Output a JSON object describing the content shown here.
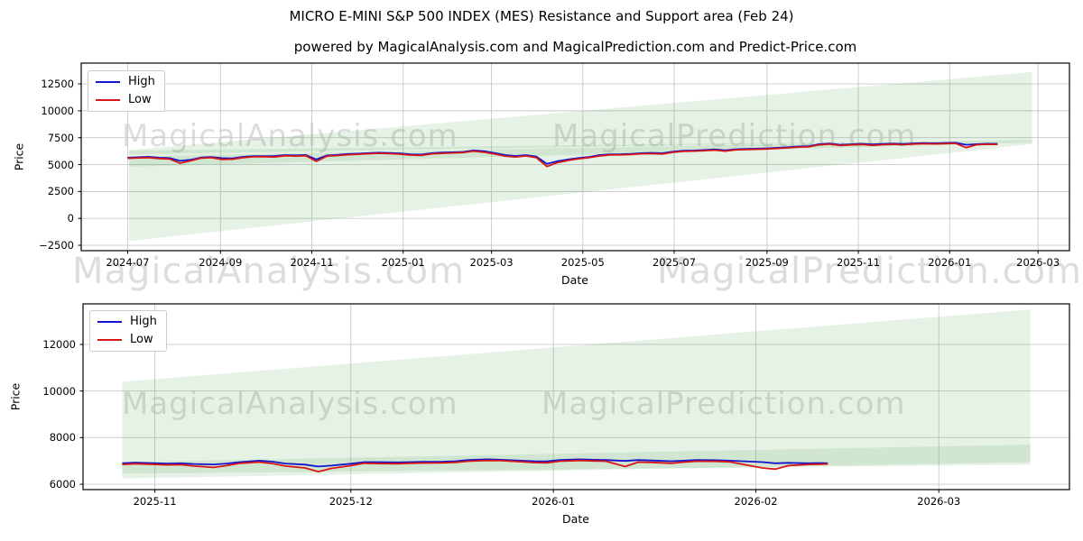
{
  "figure": {
    "title": "MICRO E-MINI S&P 500 INDEX (MES) Resistance and Support area (Feb 24)",
    "subtitle": "powered by MagicalAnalysis.com and MagicalPrediction.com and Predict-Price.com"
  },
  "watermarks": {
    "left": "MagicalAnalysis.com",
    "right": "MagicalPrediction.com"
  },
  "colors": {
    "high": "#1414cc",
    "low": "#d81616",
    "band_fill": "#3f9e3f",
    "band_opacity": 0.13,
    "grid": "#c9c9c9",
    "axis": "#000000",
    "watermark_gray": "#bfbfbf",
    "background": "#ffffff"
  },
  "chart_data": [
    {
      "type": "line",
      "title": "",
      "xlabel": "Date",
      "ylabel": "Price",
      "grid": true,
      "legend_position": "upper left",
      "x_domain": [
        "2024-05-31",
        "2026-03-22"
      ],
      "y_domain": [
        -3000,
        14430
      ],
      "y_ticks": [
        {
          "v": -2500,
          "label": "−2500"
        },
        {
          "v": 0,
          "label": "0"
        },
        {
          "v": 2500,
          "label": "2500"
        },
        {
          "v": 5000,
          "label": "5000"
        },
        {
          "v": 7500,
          "label": "7500"
        },
        {
          "v": 10000,
          "label": "10000"
        },
        {
          "v": 12500,
          "label": "12500"
        }
      ],
      "x_ticks": [
        {
          "date": "2024-07-01",
          "label": "2024-07"
        },
        {
          "date": "2024-09-01",
          "label": "2024-09"
        },
        {
          "date": "2024-11-01",
          "label": "2024-11"
        },
        {
          "date": "2025-01-01",
          "label": "2025-01"
        },
        {
          "date": "2025-03-01",
          "label": "2025-03"
        },
        {
          "date": "2025-05-01",
          "label": "2025-05"
        },
        {
          "date": "2025-07-01",
          "label": "2025-07"
        },
        {
          "date": "2025-09-01",
          "label": "2025-09"
        },
        {
          "date": "2025-11-01",
          "label": "2025-11"
        },
        {
          "date": "2026-01-01",
          "label": "2026-01"
        },
        {
          "date": "2026-03-01",
          "label": "2026-03"
        }
      ],
      "bands": [
        {
          "name": "resistance-wedge",
          "start": "2024-07-02",
          "end": "2026-02-25",
          "top": [
            6350,
            13600
          ],
          "bottom": [
            5950,
            7350
          ]
        },
        {
          "name": "support-wedge",
          "start": "2024-07-02",
          "end": "2026-02-25",
          "top": [
            6300,
            7300
          ],
          "bottom": [
            -2100,
            6900
          ]
        },
        {
          "name": "mid-band",
          "start": "2024-07-02",
          "end": "2026-02-25",
          "top": [
            5750,
            7350
          ],
          "bottom": [
            4800,
            7050
          ]
        }
      ],
      "dates": [
        "2024-07-01",
        "2024-07-08",
        "2024-07-15",
        "2024-07-22",
        "2024-07-29",
        "2024-08-05",
        "2024-08-12",
        "2024-08-19",
        "2024-08-26",
        "2024-09-02",
        "2024-09-09",
        "2024-09-16",
        "2024-09-23",
        "2024-09-30",
        "2024-10-07",
        "2024-10-14",
        "2024-10-21",
        "2024-10-28",
        "2024-11-04",
        "2024-11-11",
        "2024-11-18",
        "2024-11-25",
        "2024-12-02",
        "2024-12-09",
        "2024-12-16",
        "2024-12-23",
        "2024-12-30",
        "2025-01-06",
        "2025-01-13",
        "2025-01-20",
        "2025-01-27",
        "2025-02-03",
        "2025-02-10",
        "2025-02-17",
        "2025-02-24",
        "2025-03-03",
        "2025-03-10",
        "2025-03-17",
        "2025-03-24",
        "2025-03-31",
        "2025-04-07",
        "2025-04-14",
        "2025-04-21",
        "2025-04-28",
        "2025-05-05",
        "2025-05-12",
        "2025-05-19",
        "2025-05-26",
        "2025-06-02",
        "2025-06-09",
        "2025-06-16",
        "2025-06-23",
        "2025-06-30",
        "2025-07-07",
        "2025-07-14",
        "2025-07-21",
        "2025-07-28",
        "2025-08-04",
        "2025-08-11",
        "2025-08-18",
        "2025-08-25",
        "2025-09-01",
        "2025-09-08",
        "2025-09-15",
        "2025-09-22",
        "2025-09-29",
        "2025-10-06",
        "2025-10-13",
        "2025-10-20",
        "2025-10-27",
        "2025-11-03",
        "2025-11-10",
        "2025-11-17",
        "2025-11-24",
        "2025-12-01",
        "2025-12-08",
        "2025-12-15",
        "2025-12-22",
        "2025-12-29",
        "2026-01-05",
        "2026-01-12",
        "2026-01-19",
        "2026-01-26",
        "2026-02-02"
      ],
      "series": [
        {
          "name": "High",
          "color": "#1414cc",
          "values": [
            5640,
            5680,
            5720,
            5640,
            5610,
            5350,
            5450,
            5660,
            5700,
            5600,
            5570,
            5720,
            5780,
            5790,
            5800,
            5880,
            5860,
            5890,
            5480,
            5850,
            5900,
            5980,
            6020,
            6070,
            6110,
            6080,
            6040,
            5960,
            5930,
            6060,
            6120,
            6140,
            6180,
            6320,
            6240,
            6080,
            5890,
            5800,
            5880,
            5740,
            5060,
            5310,
            5470,
            5610,
            5710,
            5880,
            5960,
            5970,
            6000,
            6060,
            6090,
            6060,
            6190,
            6290,
            6310,
            6350,
            6410,
            6320,
            6430,
            6450,
            6480,
            6510,
            6560,
            6610,
            6690,
            6710,
            6900,
            6960,
            6840,
            6890,
            6940,
            6870,
            6910,
            6950,
            6920,
            6970,
            7000,
            6980,
            7010,
            7030,
            6840,
            6900,
            6940,
            6930
          ]
        },
        {
          "name": "Low",
          "color": "#d81616",
          "values": [
            5580,
            5620,
            5650,
            5560,
            5520,
            5130,
            5350,
            5600,
            5640,
            5480,
            5500,
            5650,
            5720,
            5730,
            5710,
            5820,
            5790,
            5820,
            5300,
            5780,
            5840,
            5920,
            5960,
            6010,
            6050,
            6020,
            5970,
            5880,
            5860,
            6000,
            6040,
            6080,
            6120,
            6250,
            6150,
            5980,
            5790,
            5710,
            5810,
            5640,
            4820,
            5180,
            5380,
            5540,
            5640,
            5800,
            5900,
            5910,
            5940,
            6000,
            6020,
            5980,
            6130,
            6230,
            6250,
            6290,
            6340,
            6250,
            6370,
            6390,
            6420,
            6450,
            6500,
            6550,
            6630,
            6650,
            6840,
            6900,
            6770,
            6830,
            6880,
            6790,
            6850,
            6890,
            6850,
            6910,
            6940,
            6920,
            6950,
            6970,
            6580,
            6850,
            6890,
            6880
          ]
        }
      ]
    },
    {
      "type": "line",
      "title": "",
      "xlabel": "Date",
      "ylabel": "Price",
      "grid": true,
      "legend_position": "upper left",
      "x_domain": [
        "2025-10-21",
        "2026-03-21"
      ],
      "y_domain": [
        5770,
        13740
      ],
      "y_ticks": [
        {
          "v": 6000,
          "label": "6000"
        },
        {
          "v": 8000,
          "label": "8000"
        },
        {
          "v": 10000,
          "label": "10000"
        },
        {
          "v": 12000,
          "label": "12000"
        }
      ],
      "x_ticks": [
        {
          "date": "2025-11-01",
          "label": "2025-11"
        },
        {
          "date": "2025-12-01",
          "label": "2025-12"
        },
        {
          "date": "2026-01-01",
          "label": "2026-01"
        },
        {
          "date": "2026-02-01",
          "label": "2026-02"
        },
        {
          "date": "2026-03-01",
          "label": "2026-03"
        }
      ],
      "bands": [
        {
          "name": "resistance-wedge",
          "start": "2025-10-27",
          "end": "2026-03-15",
          "top": [
            10400,
            13500
          ],
          "bottom": [
            6250,
            6950
          ]
        },
        {
          "name": "support-band",
          "start": "2025-10-27",
          "end": "2026-03-15",
          "top": [
            6950,
            7700
          ],
          "bottom": [
            6450,
            6840
          ]
        }
      ],
      "dates": [
        "2025-10-27",
        "2025-10-29",
        "2025-10-31",
        "2025-11-03",
        "2025-11-05",
        "2025-11-07",
        "2025-11-10",
        "2025-11-12",
        "2025-11-14",
        "2025-11-17",
        "2025-11-19",
        "2025-11-21",
        "2025-11-24",
        "2025-11-26",
        "2025-11-28",
        "2025-12-01",
        "2025-12-03",
        "2025-12-05",
        "2025-12-08",
        "2025-12-10",
        "2025-12-12",
        "2025-12-15",
        "2025-12-17",
        "2025-12-19",
        "2025-12-22",
        "2025-12-24",
        "2025-12-29",
        "2025-12-31",
        "2026-01-02",
        "2026-01-05",
        "2026-01-07",
        "2026-01-09",
        "2026-01-12",
        "2026-01-14",
        "2026-01-16",
        "2026-01-19",
        "2026-01-21",
        "2026-01-23",
        "2026-01-26",
        "2026-01-28",
        "2026-02-02",
        "2026-02-04",
        "2026-02-06",
        "2026-02-09",
        "2026-02-11",
        "2026-02-12"
      ],
      "series": [
        {
          "name": "High",
          "color": "#1414cc",
          "values": [
            6900,
            6930,
            6910,
            6890,
            6900,
            6870,
            6850,
            6890,
            6950,
            7010,
            6970,
            6890,
            6840,
            6760,
            6800,
            6880,
            6950,
            6950,
            6940,
            6950,
            6960,
            6970,
            6990,
            7040,
            7070,
            7050,
            6990,
            6980,
            7040,
            7070,
            7050,
            7040,
            7000,
            7040,
            7020,
            6990,
            7010,
            7040,
            7030,
            7010,
            6950,
            6900,
            6920,
            6900,
            6910,
            6900
          ]
        },
        {
          "name": "Low",
          "color": "#d81616",
          "values": [
            6850,
            6880,
            6860,
            6830,
            6840,
            6780,
            6720,
            6800,
            6900,
            6950,
            6890,
            6780,
            6700,
            6540,
            6680,
            6800,
            6900,
            6890,
            6880,
            6900,
            6910,
            6920,
            6940,
            6990,
            7020,
            7010,
            6930,
            6920,
            6990,
            7020,
            7000,
            6990,
            6760,
            6950,
            6940,
            6900,
            6950,
            6990,
            6980,
            6960,
            6700,
            6650,
            6800,
            6850,
            6860,
            6870
          ]
        }
      ]
    }
  ]
}
